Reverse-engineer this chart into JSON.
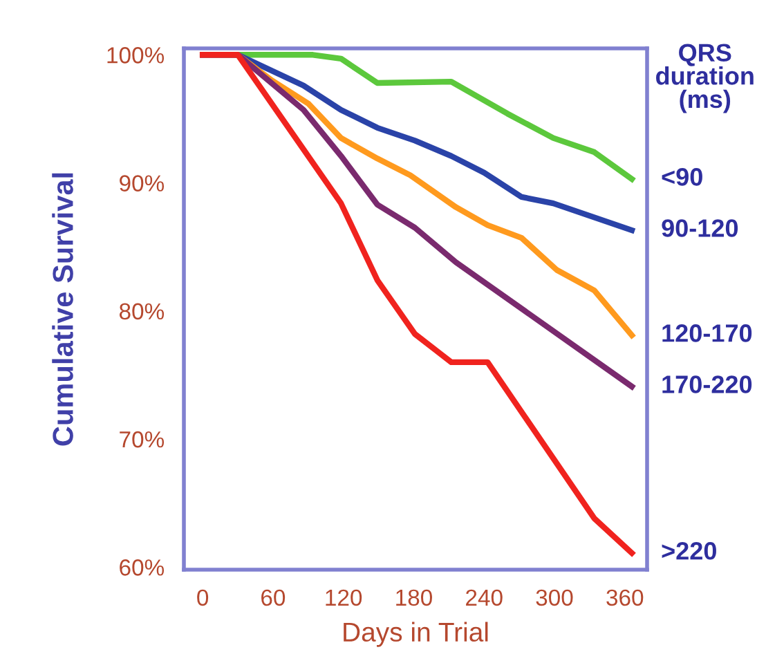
{
  "chart_data": {
    "type": "line",
    "xlabel": "Days in Trial",
    "ylabel": "Cumulative Survival",
    "legend_title": "QRS\nduration\n(ms)",
    "xlim": [
      -16,
      379
    ],
    "ylim": [
      59.8,
      100.5
    ],
    "xticks": [
      0,
      60,
      120,
      180,
      240,
      300,
      360
    ],
    "yticks": [
      {
        "value": 60,
        "label": "60%"
      },
      {
        "value": 70,
        "label": "70%"
      },
      {
        "value": 80,
        "label": "80%"
      },
      {
        "value": 90,
        "label": "90%"
      },
      {
        "value": 100,
        "label": "100%"
      }
    ],
    "grid": false,
    "legend": false,
    "marker": "none",
    "line_style": "solid",
    "series": [
      {
        "name": "<90",
        "color": "#5cc83c",
        "x": [
          30,
          94,
          118,
          149,
          212,
          260,
          299,
          334,
          366
        ],
        "values": [
          100,
          100,
          99.7,
          97.8,
          97.9,
          95.4,
          93.5,
          92.4,
          90.3
        ]
      },
      {
        "name": "90-120",
        "color": "#2a43a8",
        "x": [
          0,
          30,
          86,
          118,
          149,
          181,
          212,
          240,
          272,
          299,
          366
        ],
        "values": [
          100,
          100,
          97.6,
          95.7,
          94.3,
          93.3,
          92.1,
          90.8,
          88.9,
          88.4,
          86.3
        ]
      },
      {
        "name": "120-170",
        "color": "#ff9a1e",
        "x": [
          0,
          30,
          59,
          90,
          118,
          149,
          177,
          216,
          243,
          272,
          302,
          334,
          366
        ],
        "values": [
          100,
          100,
          98.0,
          96.2,
          93.5,
          91.9,
          90.6,
          88.1,
          86.7,
          85.7,
          83.2,
          81.6,
          78.1
        ]
      },
      {
        "name": "170-220",
        "color": "#7a2a6e",
        "x": [
          0,
          30,
          86,
          118,
          149,
          181,
          216,
          366
        ],
        "values": [
          100,
          100,
          95.7,
          92.1,
          88.3,
          86.5,
          83.8,
          74.1
        ]
      },
      {
        "name": ">220",
        "color": "#f0231e",
        "x": [
          0,
          30,
          118,
          149,
          181,
          212,
          243,
          334,
          366
        ],
        "values": [
          100,
          100,
          88.4,
          82.4,
          78.2,
          76.0,
          76.0,
          63.8,
          61.1
        ]
      }
    ]
  }
}
